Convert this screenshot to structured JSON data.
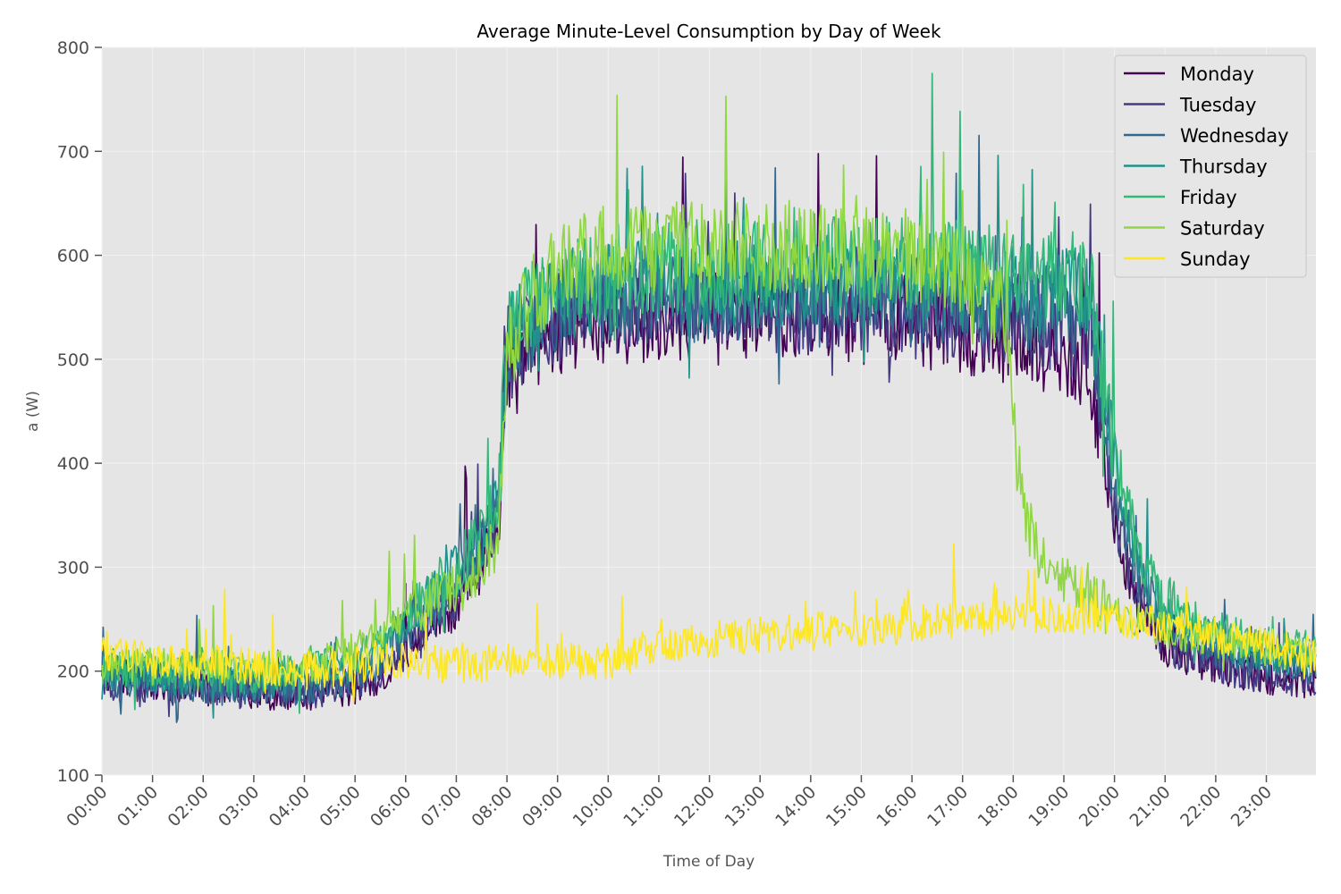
{
  "chart_data": {
    "type": "line",
    "title": "Average Minute-Level Consumption by Day of Week",
    "xlabel": "Time of Day",
    "ylabel": "a (W)",
    "ylim": [
      100,
      800
    ],
    "y_ticks": [
      100,
      200,
      300,
      400,
      500,
      600,
      700,
      800
    ],
    "xlim_hours": [
      0,
      23.98
    ],
    "x_tick_labels": [
      "00:00",
      "01:00",
      "02:00",
      "03:00",
      "04:00",
      "05:00",
      "06:00",
      "07:00",
      "08:00",
      "09:00",
      "10:00",
      "11:00",
      "12:00",
      "13:00",
      "14:00",
      "15:00",
      "16:00",
      "17:00",
      "18:00",
      "19:00",
      "20:00",
      "21:00",
      "22:00",
      "23:00"
    ],
    "grid": true,
    "legend_position": "upper-right",
    "series": [
      {
        "name": "Monday",
        "color": "#440154",
        "x": [
          "00:00",
          "01:00",
          "02:00",
          "03:00",
          "04:00",
          "05:00",
          "05:30",
          "06:00",
          "06:30",
          "07:00",
          "07:30",
          "07:50",
          "08:00",
          "08:30",
          "09:00",
          "10:00",
          "11:00",
          "12:00",
          "13:00",
          "14:00",
          "15:00",
          "16:00",
          "17:00",
          "18:00",
          "19:00",
          "19:30",
          "19:45",
          "20:00",
          "20:30",
          "21:00",
          "22:00",
          "23:00",
          "23:58"
        ],
        "y": [
          195,
          190,
          185,
          180,
          180,
          185,
          195,
          215,
          240,
          270,
          300,
          340,
          480,
          510,
          530,
          540,
          540,
          545,
          545,
          540,
          540,
          535,
          530,
          520,
          510,
          495,
          420,
          330,
          260,
          220,
          205,
          195,
          190
        ]
      },
      {
        "name": "Tuesday",
        "color": "#443983",
        "x": [
          "00:00",
          "01:00",
          "02:00",
          "03:00",
          "04:00",
          "05:00",
          "05:30",
          "06:00",
          "06:30",
          "07:00",
          "07:30",
          "07:50",
          "08:00",
          "08:30",
          "09:00",
          "10:00",
          "11:00",
          "12:00",
          "13:00",
          "14:00",
          "15:00",
          "16:00",
          "17:00",
          "18:00",
          "19:00",
          "19:30",
          "19:45",
          "20:00",
          "20:30",
          "21:00",
          "22:00",
          "23:00",
          "23:58"
        ],
        "y": [
          190,
          185,
          185,
          180,
          180,
          190,
          200,
          225,
          250,
          275,
          310,
          350,
          500,
          525,
          540,
          550,
          555,
          555,
          550,
          550,
          550,
          545,
          545,
          540,
          530,
          520,
          440,
          350,
          270,
          225,
          205,
          195,
          190
        ]
      },
      {
        "name": "Wednesday",
        "color": "#31688e",
        "x": [
          "00:00",
          "01:00",
          "02:00",
          "03:00",
          "04:00",
          "05:00",
          "05:30",
          "06:00",
          "06:30",
          "07:00",
          "07:30",
          "07:50",
          "08:00",
          "08:30",
          "09:00",
          "10:00",
          "11:00",
          "12:00",
          "13:00",
          "14:00",
          "15:00",
          "16:00",
          "17:00",
          "18:00",
          "19:00",
          "19:30",
          "19:45",
          "20:00",
          "20:30",
          "21:00",
          "22:00",
          "23:00",
          "23:58"
        ],
        "y": [
          190,
          190,
          185,
          185,
          185,
          195,
          210,
          235,
          260,
          285,
          320,
          360,
          510,
          535,
          550,
          560,
          560,
          560,
          560,
          565,
          565,
          560,
          560,
          555,
          550,
          545,
          470,
          380,
          285,
          240,
          220,
          210,
          205
        ]
      },
      {
        "name": "Thursday",
        "color": "#21918c",
        "x": [
          "00:00",
          "01:00",
          "02:00",
          "03:00",
          "04:00",
          "05:00",
          "05:30",
          "06:00",
          "06:30",
          "07:00",
          "07:30",
          "07:50",
          "08:00",
          "08:30",
          "09:00",
          "10:00",
          "11:00",
          "12:00",
          "13:00",
          "14:00",
          "15:00",
          "16:00",
          "17:00",
          "18:00",
          "19:00",
          "19:30",
          "19:45",
          "20:00",
          "20:30",
          "21:00",
          "22:00",
          "23:00",
          "23:58"
        ],
        "y": [
          200,
          195,
          195,
          190,
          195,
          205,
          220,
          245,
          270,
          295,
          325,
          365,
          520,
          545,
          560,
          570,
          575,
          575,
          570,
          575,
          575,
          575,
          570,
          565,
          565,
          560,
          480,
          400,
          300,
          255,
          230,
          215,
          210
        ]
      },
      {
        "name": "Friday",
        "color": "#35b779",
        "x": [
          "00:00",
          "01:00",
          "02:00",
          "03:00",
          "04:00",
          "05:00",
          "05:30",
          "06:00",
          "06:30",
          "07:00",
          "07:30",
          "07:50",
          "08:00",
          "08:30",
          "09:00",
          "10:00",
          "11:00",
          "12:00",
          "13:00",
          "14:00",
          "15:00",
          "16:00",
          "17:00",
          "18:00",
          "19:00",
          "19:30",
          "19:45",
          "20:00",
          "20:30",
          "21:00",
          "22:00",
          "23:00",
          "23:58"
        ],
        "y": [
          205,
          200,
          200,
          195,
          200,
          215,
          230,
          250,
          275,
          300,
          330,
          370,
          525,
          555,
          575,
          585,
          590,
          590,
          590,
          595,
          595,
          590,
          590,
          585,
          580,
          575,
          490,
          410,
          310,
          265,
          240,
          225,
          220
        ]
      },
      {
        "name": "Saturday",
        "color": "#90d743",
        "x": [
          "00:00",
          "01:00",
          "02:00",
          "03:00",
          "04:00",
          "05:00",
          "05:30",
          "06:00",
          "06:30",
          "07:00",
          "07:30",
          "07:50",
          "08:00",
          "08:30",
          "09:00",
          "10:00",
          "11:00",
          "12:00",
          "13:00",
          "14:00",
          "15:00",
          "16:00",
          "17:00",
          "17:30",
          "17:50",
          "18:00",
          "18:15",
          "18:30",
          "19:00",
          "19:30",
          "20:00",
          "21:00",
          "22:00",
          "23:00",
          "23:58"
        ],
        "y": [
          210,
          205,
          205,
          200,
          205,
          220,
          235,
          255,
          265,
          275,
          300,
          330,
          500,
          560,
          590,
          605,
          605,
          610,
          605,
          610,
          605,
          600,
          590,
          570,
          540,
          430,
          350,
          310,
          290,
          270,
          255,
          240,
          230,
          220,
          215
        ]
      },
      {
        "name": "Sunday",
        "color": "#fde725",
        "x": [
          "00:00",
          "01:00",
          "02:00",
          "03:00",
          "04:00",
          "05:00",
          "06:00",
          "07:00",
          "08:00",
          "09:00",
          "10:00",
          "11:00",
          "12:00",
          "13:00",
          "14:00",
          "15:00",
          "16:00",
          "17:00",
          "18:00",
          "19:00",
          "20:00",
          "21:00",
          "22:00",
          "23:00",
          "23:58"
        ],
        "y": [
          215,
          210,
          205,
          205,
          200,
          205,
          210,
          205,
          210,
          210,
          210,
          225,
          230,
          235,
          240,
          240,
          245,
          250,
          255,
          255,
          250,
          245,
          235,
          225,
          215
        ]
      }
    ]
  }
}
